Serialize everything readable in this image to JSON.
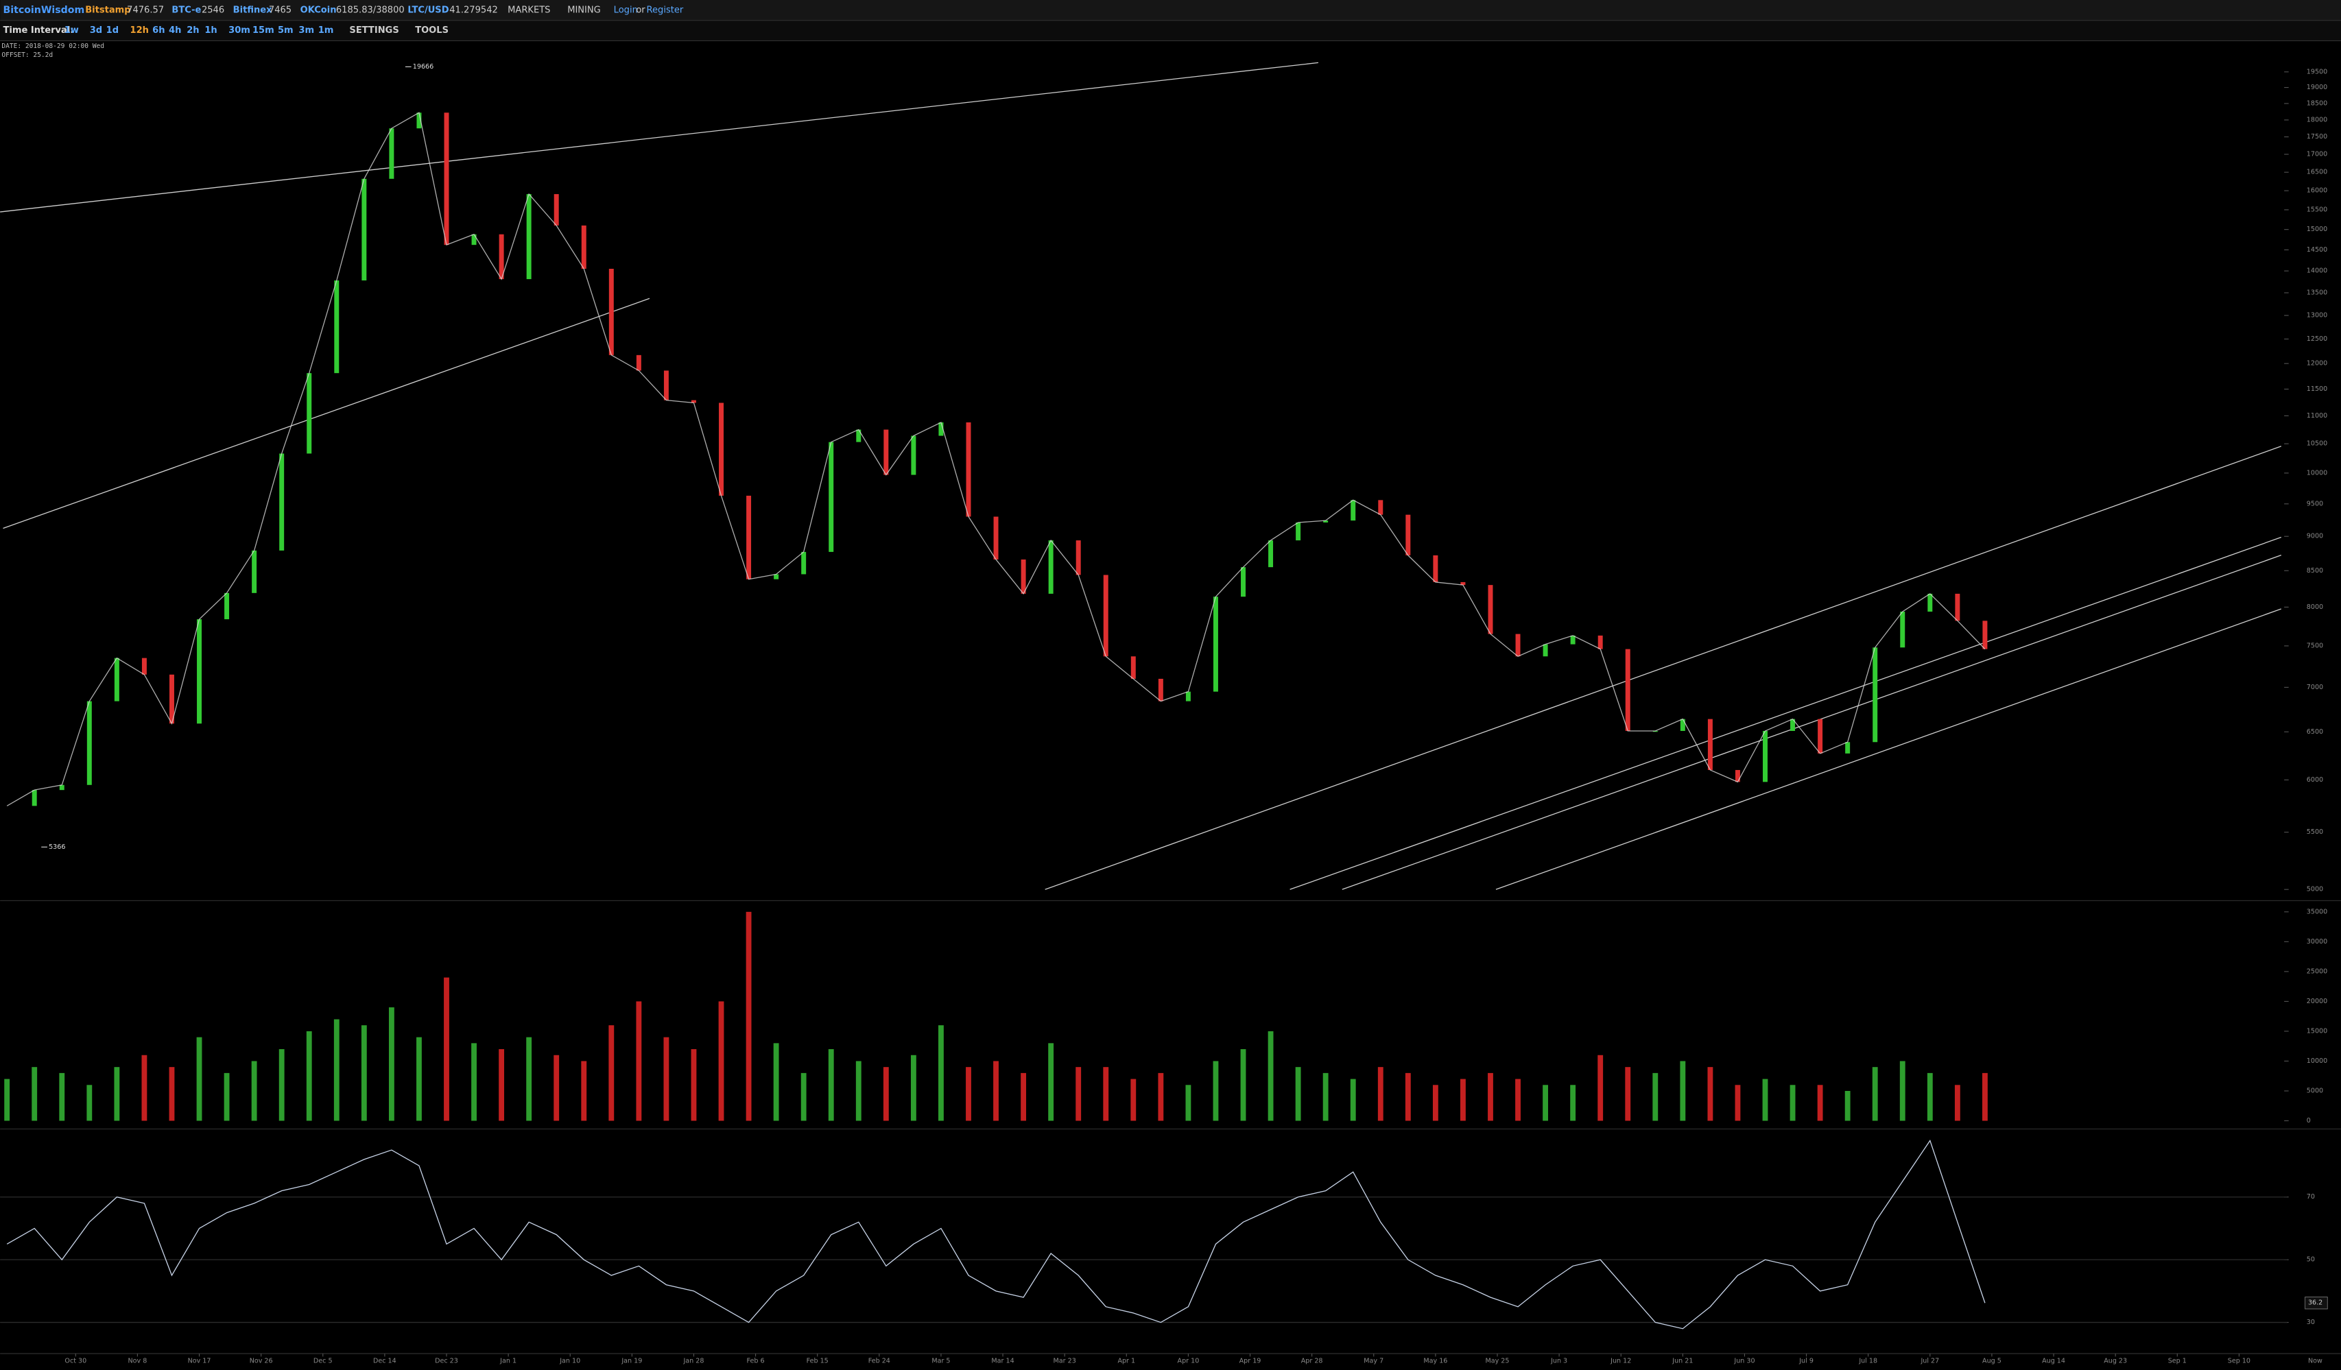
{
  "header": {
    "brand": "BitcoinWisdom",
    "tickers": [
      {
        "name": "Bitstamp",
        "price": "7476.57"
      },
      {
        "name": "BTC-e",
        "price": "2546"
      },
      {
        "name": "Bitfinex",
        "price": "7465"
      },
      {
        "name": "OKCoin",
        "price": "6185.83/38800"
      },
      {
        "name": "LTC/USD",
        "price": "41.279542"
      }
    ],
    "menus": [
      "MARKETS",
      "MINING"
    ],
    "login": "Login",
    "or": "or",
    "register": "Register"
  },
  "toolbar": {
    "label": "Time Interval:",
    "intervals": [
      "1w",
      "3d",
      "1d",
      "12h",
      "6h",
      "4h",
      "2h",
      "1h",
      "30m",
      "15m",
      "5m",
      "3m",
      "1m"
    ],
    "active_index": 3,
    "settings": "SETTINGS",
    "tools": "TOOLS"
  },
  "info": {
    "date": "DATE: 2018-08-29 02:00 Wed",
    "offset": "OFFSET: 25.2d",
    "now": "Now"
  },
  "chart_data": [
    {
      "type": "candlestick",
      "log_scale": true,
      "colors": {
        "up": "#33cc33",
        "down": "#e03030",
        "line": "#d8d8d8"
      },
      "x": [
        -10,
        -6,
        -2,
        2,
        6,
        10,
        14,
        18,
        22,
        26,
        30,
        34,
        38,
        42,
        46,
        50,
        54,
        58,
        62,
        66,
        70,
        74,
        78,
        82,
        86,
        90,
        94,
        98,
        102,
        106,
        110,
        114,
        118,
        122,
        126,
        130,
        134,
        138,
        142,
        146,
        150,
        154,
        158,
        162,
        166,
        170,
        174,
        178,
        182,
        186,
        190,
        194,
        198,
        202,
        206,
        210,
        214,
        218,
        222,
        226,
        230,
        234,
        238,
        242,
        246,
        250,
        254,
        258,
        262,
        266,
        270,
        274,
        278
      ],
      "series": [
        {
          "name": "BTC/USD",
          "values": [
            5746,
            5900,
            5950,
            6840,
            7350,
            7150,
            6590,
            7840,
            8190,
            8790,
            10330,
            11810,
            13780,
            16320,
            17750,
            18220,
            14620,
            14880,
            13810,
            15910,
            15100,
            14050,
            12170,
            11860,
            11290,
            11240,
            9630,
            8380,
            8450,
            8770,
            10530,
            10750,
            9970,
            10640,
            10880,
            9300,
            8660,
            8180,
            8940,
            8440,
            7370,
            7100,
            6840,
            6950,
            8140,
            8550,
            8940,
            9210,
            9240,
            9560,
            9330,
            8720,
            8340,
            8300,
            7650,
            7370,
            7520,
            7630,
            7460,
            6510,
            6510,
            6640,
            6100,
            5980,
            6510,
            6640,
            6270,
            6390,
            7480,
            7940,
            8180,
            7820,
            7460
          ]
        }
      ],
      "annotations": [
        {
          "x": 48,
          "value": 19666
        },
        {
          "x": -5,
          "value": 5366
        }
      ],
      "xlim": [
        -11,
        322
      ],
      "ylim": [
        4926,
        20400
      ],
      "yticks": [
        5000,
        5500,
        6000,
        6500,
        7000,
        7500,
        8000,
        8500,
        9000,
        9500,
        10000,
        10500,
        11000,
        11500,
        12000,
        12500,
        13000,
        13500,
        14000,
        14500,
        15000,
        15500,
        16000,
        16500,
        17000,
        17500,
        18000,
        18500,
        19000,
        19500
      ]
    },
    {
      "type": "bar",
      "colors": {
        "up": "#2e9e2e",
        "down": "#c42020"
      },
      "x": [
        -10,
        -6,
        -2,
        2,
        6,
        10,
        14,
        18,
        22,
        26,
        30,
        34,
        38,
        42,
        46,
        50,
        54,
        58,
        62,
        66,
        70,
        74,
        78,
        82,
        86,
        90,
        94,
        98,
        102,
        106,
        110,
        114,
        118,
        122,
        126,
        130,
        134,
        138,
        142,
        146,
        150,
        154,
        158,
        162,
        166,
        170,
        174,
        178,
        182,
        186,
        190,
        194,
        198,
        202,
        206,
        210,
        214,
        218,
        222,
        226,
        230,
        234,
        238,
        242,
        246,
        250,
        254,
        258,
        262,
        266,
        270,
        274,
        278
      ],
      "values": [
        7000,
        9000,
        8000,
        6000,
        9000,
        11000,
        9000,
        14000,
        8000,
        10000,
        12000,
        15000,
        17000,
        16000,
        19000,
        14000,
        24000,
        13000,
        12000,
        14000,
        11000,
        10000,
        16000,
        20000,
        14000,
        12000,
        20000,
        35000,
        13000,
        8000,
        12000,
        10000,
        9000,
        11000,
        16000,
        9000,
        10000,
        8000,
        13000,
        9000,
        9000,
        7000,
        8000,
        6000,
        10000,
        12000,
        15000,
        9000,
        8000,
        7000,
        9000,
        8000,
        6000,
        7000,
        8000,
        7000,
        6000,
        6000,
        11000,
        9000,
        8000,
        10000,
        9000,
        6000,
        7000,
        6000,
        6000,
        5000,
        9000,
        10000,
        8000,
        6000,
        8000
      ],
      "xlim": [
        -11,
        322
      ],
      "ylim": [
        -1000,
        36500
      ],
      "yticks": [
        0,
        5000,
        10000,
        15000,
        20000,
        25000,
        30000,
        35000
      ]
    },
    {
      "type": "line",
      "color": "#c8d4e8",
      "grid": true,
      "x": [
        -10,
        -6,
        -2,
        2,
        6,
        10,
        14,
        18,
        22,
        26,
        30,
        34,
        38,
        42,
        46,
        50,
        54,
        58,
        62,
        66,
        70,
        74,
        78,
        82,
        86,
        90,
        94,
        98,
        102,
        106,
        110,
        114,
        118,
        122,
        126,
        130,
        134,
        138,
        142,
        146,
        150,
        154,
        158,
        162,
        166,
        170,
        174,
        178,
        182,
        186,
        190,
        194,
        198,
        202,
        206,
        210,
        214,
        218,
        222,
        226,
        230,
        234,
        238,
        242,
        246,
        250,
        254,
        258,
        262,
        266,
        270,
        274,
        278
      ],
      "values": [
        55,
        60,
        50,
        62,
        70,
        68,
        45,
        60,
        65,
        68,
        72,
        74,
        78,
        82,
        85,
        80,
        55,
        60,
        50,
        62,
        58,
        50,
        45,
        48,
        42,
        40,
        35,
        30,
        40,
        45,
        58,
        62,
        48,
        55,
        60,
        45,
        40,
        38,
        52,
        45,
        35,
        33,
        30,
        35,
        55,
        62,
        66,
        70,
        72,
        78,
        62,
        50,
        45,
        42,
        38,
        35,
        42,
        48,
        50,
        40,
        30,
        28,
        35,
        45,
        50,
        48,
        40,
        42,
        62,
        75,
        88,
        62,
        36.2
      ],
      "xlim": [
        -11,
        322
      ],
      "ylim": [
        21,
        91
      ],
      "yticks": [
        30,
        50,
        70
      ],
      "xticks": [
        {
          "value": 0,
          "label": "Oct 30"
        },
        {
          "value": 9,
          "label": "Nov 8"
        },
        {
          "value": 18,
          "label": "Nov 17"
        },
        {
          "value": 27,
          "label": "Nov 26"
        },
        {
          "value": 36,
          "label": "Dec 5"
        },
        {
          "value": 45,
          "label": "Dec 14"
        },
        {
          "value": 54,
          "label": "Dec 23"
        },
        {
          "value": 63,
          "label": "Jan 1"
        },
        {
          "value": 72,
          "label": "Jan 10"
        },
        {
          "value": 81,
          "label": "Jan 19"
        },
        {
          "value": 90,
          "label": "Jan 28"
        },
        {
          "value": 99,
          "label": "Feb 6"
        },
        {
          "value": 108,
          "label": "Feb 15"
        },
        {
          "value": 117,
          "label": "Feb 24"
        },
        {
          "value": 126,
          "label": "Mar 5"
        },
        {
          "value": 135,
          "label": "Mar 14"
        },
        {
          "value": 144,
          "label": "Mar 23"
        },
        {
          "value": 153,
          "label": "Apr 1"
        },
        {
          "value": 162,
          "label": "Apr 10"
        },
        {
          "value": 171,
          "label": "Apr 19"
        },
        {
          "value": 180,
          "label": "Apr 28"
        },
        {
          "value": 189,
          "label": "May 7"
        },
        {
          "value": 198,
          "label": "May 16"
        },
        {
          "value": 207,
          "label": "May 25"
        },
        {
          "value": 216,
          "label": "Jun 3"
        },
        {
          "value": 225,
          "label": "Jun 12"
        },
        {
          "value": 234,
          "label": "Jun 21"
        },
        {
          "value": 243,
          "label": "Jun 30"
        },
        {
          "value": 252,
          "label": "Jul 9"
        },
        {
          "value": 261,
          "label": "Jul 18"
        },
        {
          "value": 270,
          "label": "Jul 27"
        },
        {
          "value": 279,
          "label": "Aug 5"
        },
        {
          "value": 288,
          "label": "Aug 14"
        },
        {
          "value": 297,
          "label": "Aug 23"
        },
        {
          "value": 306,
          "label": "Sep 1"
        },
        {
          "value": 315,
          "label": "Sep 10"
        }
      ]
    }
  ]
}
